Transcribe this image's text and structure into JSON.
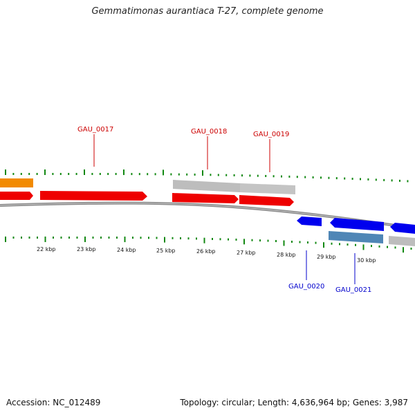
{
  "title": "Gemmatimonas aurantiaca T-27, complete genome",
  "accession": "Accession: NC_012489",
  "summary": "Topology: circular; Length: 4,636,964 bp; Genes: 3,987",
  "colors": {
    "forward_gene": "#ee0000",
    "reverse_gene": "#0000ee",
    "orange_feature": "#f28a00",
    "gray_feature": "#bdbdbd",
    "steel_feature": "#4f86b6",
    "tick_green": "#118811",
    "backbone": "#888888"
  },
  "kbp_labels": [
    "22 kbp",
    "23 kbp",
    "24 kbp",
    "25 kbp",
    "26 kbp",
    "27 kbp",
    "28 kbp",
    "29 kbp",
    "30 kbp"
  ],
  "gene_labels": [
    {
      "id": "g17",
      "text": "GAU_0017",
      "strand": "forward"
    },
    {
      "id": "g18",
      "text": "GAU_0018",
      "strand": "forward"
    },
    {
      "id": "g19",
      "text": "GAU_0019",
      "strand": "forward"
    },
    {
      "id": "g20",
      "text": "GAU_0020",
      "strand": "reverse"
    },
    {
      "id": "g21",
      "text": "GAU_0021",
      "strand": "reverse"
    }
  ]
}
